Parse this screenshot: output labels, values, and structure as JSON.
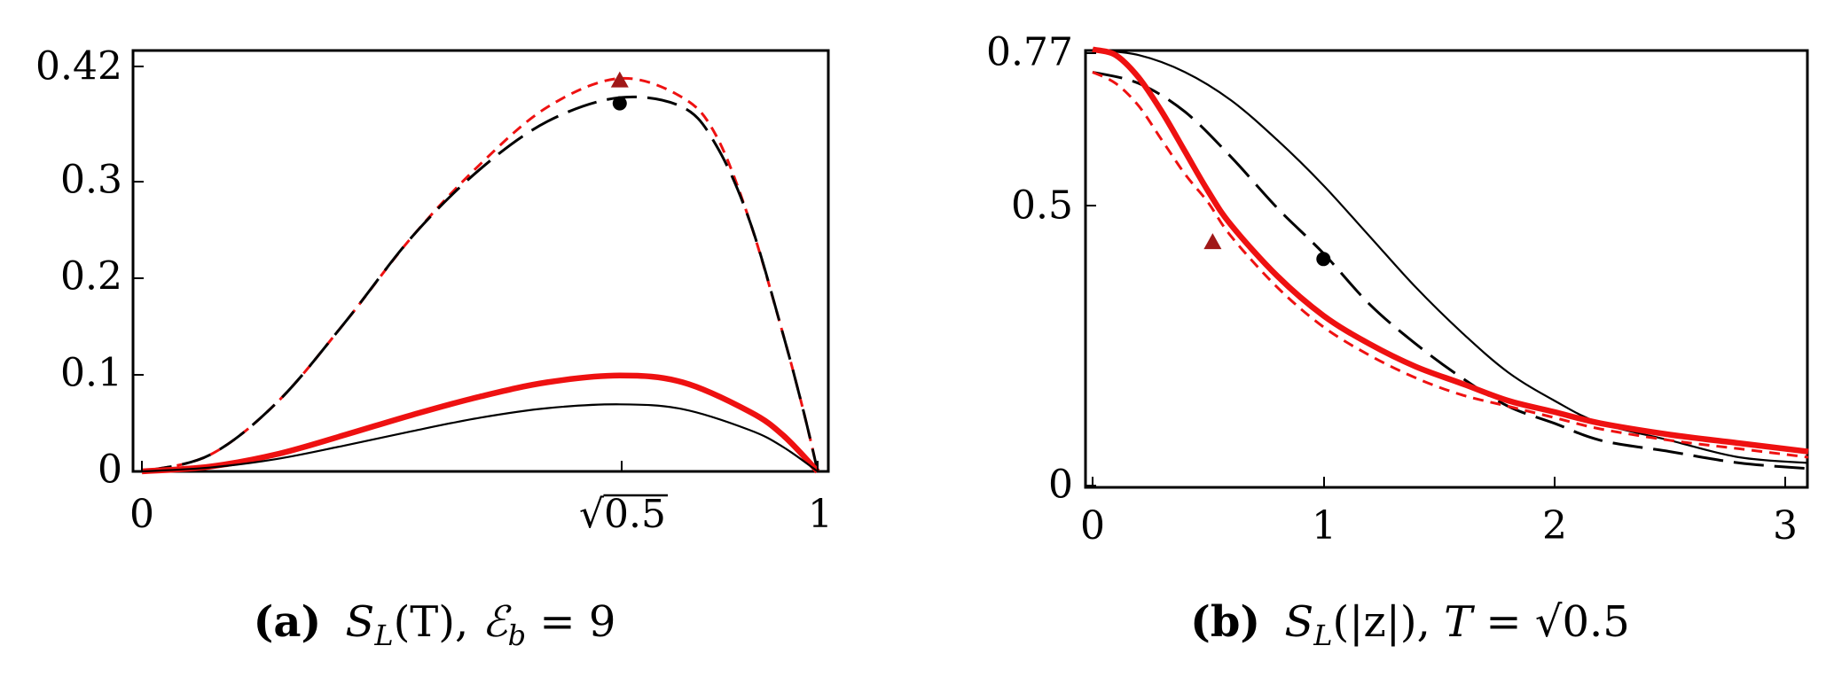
{
  "panels": [
    {
      "label": "(a)",
      "caption": "S_L(T), ℰ_b = 9",
      "caption_parts": {
        "fn": "S",
        "sub": "L",
        "arg": "(T), ",
        "script": "ℰ",
        "sub2": "b",
        "rest": " = 9"
      },
      "x_ticks": [
        "0",
        "√0.5",
        "1"
      ],
      "y_ticks": [
        "0",
        "0.1",
        "0.2",
        "0.3",
        "0.42"
      ]
    },
    {
      "label": "(b)",
      "caption": "S_L(|z|), T = √0.5",
      "caption_parts": {
        "fn": "S",
        "sub": "L",
        "arg": "(|z|), ",
        "var": "T",
        "rest": " = √0.5"
      },
      "x_ticks": [
        "0",
        "1",
        "2",
        "3"
      ],
      "y_ticks": [
        "0",
        "0.5",
        "0.77"
      ]
    }
  ],
  "colors": {
    "red": "#ee1111",
    "black": "#000000",
    "marker_red": "#a01818"
  },
  "chart_data": [
    {
      "type": "line",
      "xlabel": "",
      "ylabel": "",
      "xlim": [
        -0.01,
        1.0
      ],
      "ylim": [
        0,
        0.44
      ],
      "grid": false,
      "series": [
        {
          "style": "red-dashed",
          "x": [
            0,
            0.1,
            0.2,
            0.3,
            0.4,
            0.5,
            0.6,
            0.7071,
            0.8,
            0.85,
            0.9,
            0.95,
            0.98,
            1.0
          ],
          "y": [
            0,
            0.017,
            0.072,
            0.155,
            0.245,
            0.32,
            0.38,
            0.41,
            0.39,
            0.35,
            0.26,
            0.14,
            0.06,
            0
          ]
        },
        {
          "style": "black-longdash",
          "x": [
            0,
            0.1,
            0.2,
            0.3,
            0.4,
            0.5,
            0.6,
            0.7071,
            0.8,
            0.85,
            0.9,
            0.95,
            0.98,
            1.0
          ],
          "y": [
            0,
            0.017,
            0.072,
            0.155,
            0.245,
            0.315,
            0.365,
            0.39,
            0.38,
            0.34,
            0.26,
            0.14,
            0.06,
            0
          ]
        },
        {
          "style": "red-thick",
          "x": [
            0,
            0.1,
            0.2,
            0.3,
            0.4,
            0.5,
            0.6,
            0.7071,
            0.8,
            0.9,
            0.95,
            1.0
          ],
          "y": [
            0,
            0.005,
            0.018,
            0.038,
            0.059,
            0.078,
            0.093,
            0.1,
            0.093,
            0.062,
            0.037,
            0
          ]
        },
        {
          "style": "black-thin",
          "x": [
            0,
            0.1,
            0.2,
            0.3,
            0.4,
            0.5,
            0.6,
            0.7071,
            0.8,
            0.9,
            0.95,
            1.0
          ],
          "y": [
            0,
            0.004,
            0.013,
            0.027,
            0.042,
            0.056,
            0.066,
            0.07,
            0.065,
            0.043,
            0.025,
            0
          ]
        }
      ],
      "markers": [
        {
          "shape": "triangle",
          "x": 0.7071,
          "y": 0.408
        },
        {
          "shape": "circle",
          "x": 0.7071,
          "y": 0.384
        }
      ]
    },
    {
      "type": "line",
      "xlabel": "",
      "ylabel": "",
      "xlim": [
        -0.03,
        3.1
      ],
      "ylim": [
        0,
        0.79
      ],
      "grid": false,
      "series": [
        {
          "style": "black-thin",
          "x": [
            0,
            0.2,
            0.4,
            0.6,
            0.8,
            1.0,
            1.2,
            1.4,
            1.6,
            1.8,
            2.0,
            2.2,
            2.5,
            2.8,
            3.1
          ],
          "y": [
            0.77,
            0.76,
            0.73,
            0.68,
            0.61,
            0.53,
            0.44,
            0.35,
            0.27,
            0.2,
            0.15,
            0.11,
            0.08,
            0.05,
            0.04
          ]
        },
        {
          "style": "black-longdash",
          "x": [
            0,
            0.2,
            0.4,
            0.6,
            0.8,
            1.0,
            1.2,
            1.4,
            1.6,
            1.8,
            2.0,
            2.2,
            2.5,
            2.8,
            3.1
          ],
          "y": [
            0.73,
            0.71,
            0.66,
            0.58,
            0.49,
            0.41,
            0.32,
            0.25,
            0.19,
            0.14,
            0.11,
            0.08,
            0.06,
            0.04,
            0.03
          ]
        },
        {
          "style": "red-thick",
          "x": [
            0,
            0.1,
            0.2,
            0.3,
            0.4,
            0.5,
            0.6,
            0.8,
            1.0,
            1.2,
            1.4,
            1.6,
            1.8,
            2.0,
            2.2,
            2.5,
            2.8,
            3.1
          ],
          "y": [
            0.77,
            0.76,
            0.72,
            0.66,
            0.59,
            0.52,
            0.46,
            0.37,
            0.3,
            0.25,
            0.21,
            0.18,
            0.15,
            0.13,
            0.11,
            0.09,
            0.075,
            0.06
          ]
        },
        {
          "style": "red-dashed",
          "x": [
            0,
            0.1,
            0.2,
            0.3,
            0.4,
            0.5,
            0.6,
            0.8,
            1.0,
            1.2,
            1.4,
            1.6,
            1.8,
            2.0,
            2.2,
            2.5,
            2.8,
            3.1
          ],
          "y": [
            0.73,
            0.71,
            0.67,
            0.61,
            0.55,
            0.5,
            0.44,
            0.35,
            0.28,
            0.23,
            0.19,
            0.16,
            0.14,
            0.12,
            0.1,
            0.08,
            0.065,
            0.05
          ]
        }
      ],
      "markers": [
        {
          "shape": "triangle",
          "x": 0.52,
          "y": 0.43
        },
        {
          "shape": "circle",
          "x": 1.0,
          "y": 0.4
        }
      ]
    }
  ]
}
